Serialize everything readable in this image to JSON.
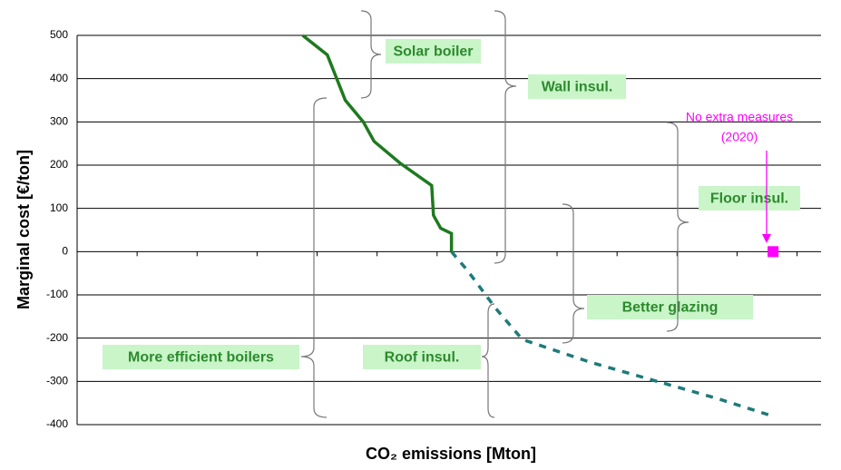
{
  "chart_data": {
    "type": "line",
    "y_label": "Marginal cost [€/ton]",
    "x_label": "CO₂ emissions [Mton]",
    "ylim": [
      -400,
      500
    ],
    "yticks": [
      -400,
      -300,
      -200,
      -100,
      0,
      100,
      200,
      300,
      400,
      500
    ],
    "xlim": [
      0,
      12.4
    ],
    "xticks": [
      0,
      1,
      2,
      3,
      4,
      5,
      6,
      7,
      8,
      9,
      10,
      11,
      12
    ],
    "grid": true,
    "series": [
      {
        "color": "#1e7a1e",
        "style": "solid",
        "x": [
          3.76,
          4.17,
          4.47,
          4.77,
          4.95,
          5.38,
          5.91,
          5.94,
          6.06,
          6.24,
          6.24
        ],
        "values": [
          500,
          455,
          350,
          300,
          255,
          205,
          153,
          84,
          54,
          42,
          0
        ]
      },
      {
        "color": "#1f7a7a",
        "style": "dashed",
        "x": [
          6.24,
          6.52,
          6.97,
          7.42,
          8.56,
          9.62,
          10.68,
          11.52
        ],
        "values": [
          0,
          -46,
          -130,
          -203,
          -256,
          -298,
          -340,
          -377
        ]
      },
      {
        "color": "#ff00ff",
        "style": "marker",
        "x": [
          11.6
        ],
        "values": [
          0
        ]
      }
    ],
    "annotations": [
      "Solar boiler",
      "Wall insul.",
      "Floor insul.",
      "Better glazing",
      "More efficient boilers",
      "Roof insul."
    ],
    "reference_note": [
      "No extra measures",
      "(2020)"
    ]
  }
}
